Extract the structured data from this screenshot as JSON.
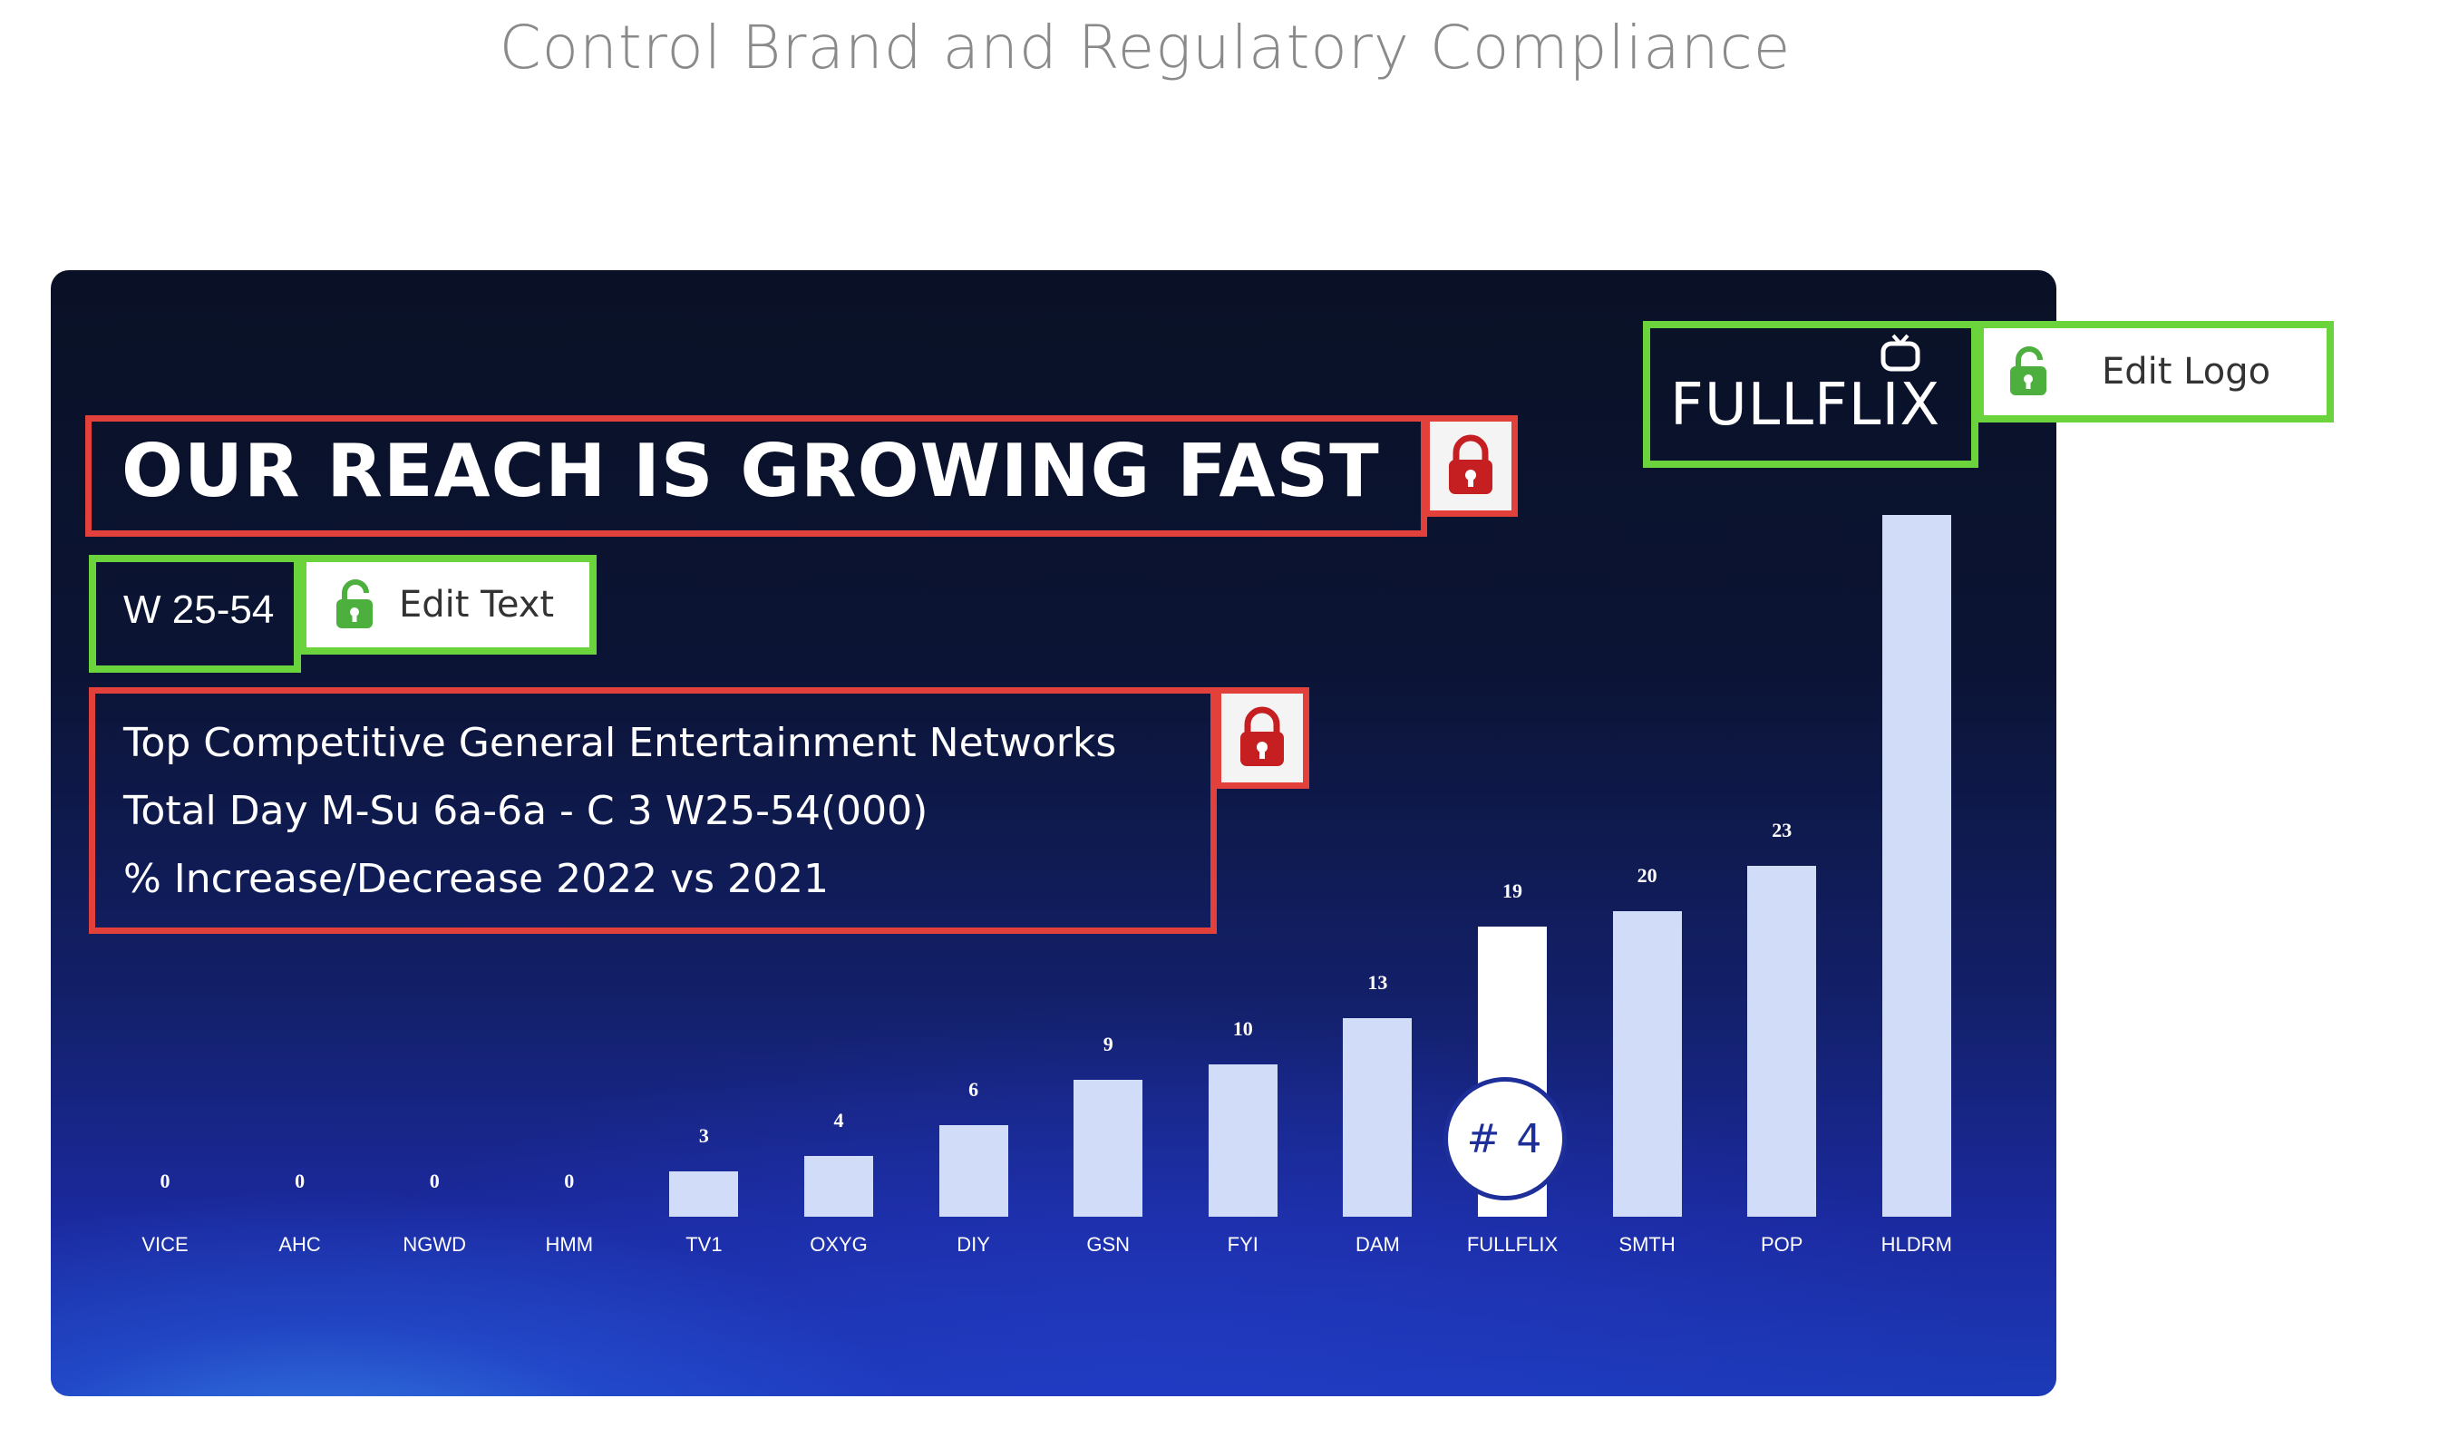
{
  "page": {
    "heading": "Control Brand and Regulatory Compliance"
  },
  "slide": {
    "headline": "OUR REACH IS GROWING FAST",
    "demo": "W 25-54",
    "edit_text_label": "Edit Text",
    "edit_logo_label": "Edit Logo",
    "logo_text": "FULLFLIX",
    "description": [
      "Top Competitive General Entertainment Networks",
      "Total Day M-Su 6a-6a - C 3 W25-54(000)",
      "% Increase/Decrease 2022 vs 2021"
    ],
    "rank_badge": "# 4"
  },
  "colors": {
    "locked_frame": "#e2413b",
    "editable_frame": "#6bd33c",
    "bar": "#d0dcf8",
    "highlight_bar": "#ffffff",
    "badge_text": "#1e2f9a"
  },
  "icons": {
    "locked": "lock-icon",
    "unlocked": "unlock-icon",
    "logo": "tv-icon"
  },
  "chart_data": {
    "type": "bar",
    "categories": [
      "VICE",
      "AHC",
      "NGWD",
      "HMM",
      "TV1",
      "OXYG",
      "DIY",
      "GSN",
      "FYI",
      "DAM",
      "FULLFLIX",
      "SMTH",
      "POP",
      "HLDRM"
    ],
    "values": [
      0,
      0,
      0,
      0,
      3,
      4,
      6,
      9,
      10,
      13,
      19,
      20,
      23,
      46
    ],
    "value_labels": [
      "0",
      "0",
      "0",
      "0",
      "3",
      "4",
      "6",
      "9",
      "10",
      "13",
      "19",
      "20",
      "23",
      ""
    ],
    "highlight": "FULLFLIX",
    "ylim": [
      0,
      46
    ]
  }
}
